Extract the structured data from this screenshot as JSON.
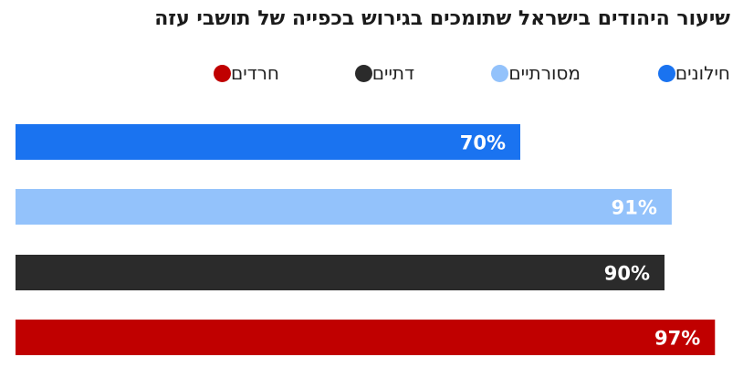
{
  "chart_data": {
    "type": "bar",
    "orientation": "horizontal",
    "title": "שיעור היהודים בישראל שתומכים בגירוש בכפייה של תושבי עזה",
    "categories": [
      "חילונים",
      "מסורתיים",
      "דתיים",
      "חרדים"
    ],
    "values": [
      70,
      91,
      90,
      97
    ],
    "value_labels": [
      "70%",
      "91%",
      "90%",
      "97%"
    ],
    "colors": [
      "#1a73f0",
      "#93c2fb",
      "#2b2b2b",
      "#c00000"
    ],
    "xlim": [
      0,
      100
    ],
    "grid": false,
    "legend_position": "top"
  }
}
